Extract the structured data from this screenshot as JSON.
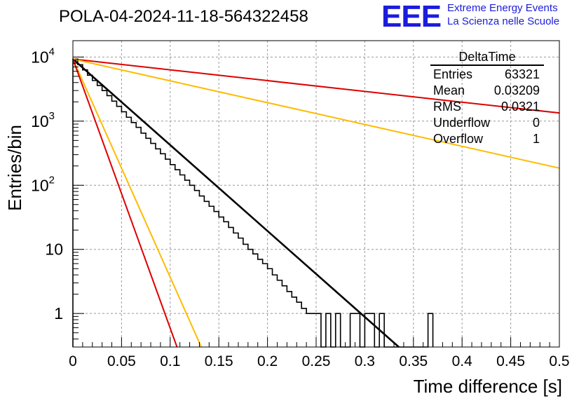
{
  "title": "POLA-04-2024-11-18-564322458",
  "logo": {
    "mark": "EEE",
    "line1": "Extreme Energy Events",
    "line2": "La Scienza nelle Scuole"
  },
  "stats": {
    "name": "DeltaTime",
    "rows": [
      {
        "label": "Entries",
        "value": "63321"
      },
      {
        "label": "Mean",
        "value": "0.03209"
      },
      {
        "label": "RMS",
        "value": "0.0321"
      },
      {
        "label": "Underflow",
        "value": "0"
      },
      {
        "label": "Overflow",
        "value": "1"
      }
    ]
  },
  "chart_data": {
    "type": "line",
    "title": "POLA-04-2024-11-18-564322458",
    "xlabel": "Time difference [s]",
    "ylabel": "Entries/bin",
    "xlim": [
      0,
      0.5
    ],
    "ylim": [
      0.3,
      18000
    ],
    "yscale": "log",
    "grid": true,
    "legend": "none",
    "x_ticks": [
      "0",
      "0.05",
      "0.1",
      "0.15",
      "0.2",
      "0.25",
      "0.3",
      "0.35",
      "0.4",
      "0.45",
      "0.5"
    ],
    "y_ticks": [
      {
        "value": 1,
        "base": "1",
        "exp": ""
      },
      {
        "value": 10,
        "base": "10",
        "exp": ""
      },
      {
        "value": 100,
        "base": "10",
        "exp": "2"
      },
      {
        "value": 1000,
        "base": "10",
        "exp": "3"
      },
      {
        "value": 10000,
        "base": "10",
        "exp": "4"
      }
    ],
    "histogram": {
      "bin_width": 0.005,
      "color": "#000000",
      "bins": [
        {
          "x": 0.0,
          "y": 9300
        },
        {
          "x": 0.005,
          "y": 7600
        },
        {
          "x": 0.01,
          "y": 6300
        },
        {
          "x": 0.015,
          "y": 5200
        },
        {
          "x": 0.02,
          "y": 4300
        },
        {
          "x": 0.025,
          "y": 3600
        },
        {
          "x": 0.03,
          "y": 3000
        },
        {
          "x": 0.035,
          "y": 2500
        },
        {
          "x": 0.04,
          "y": 2050
        },
        {
          "x": 0.045,
          "y": 1700
        },
        {
          "x": 0.05,
          "y": 1400
        },
        {
          "x": 0.055,
          "y": 1150
        },
        {
          "x": 0.06,
          "y": 950
        },
        {
          "x": 0.065,
          "y": 800
        },
        {
          "x": 0.07,
          "y": 650
        },
        {
          "x": 0.075,
          "y": 540
        },
        {
          "x": 0.08,
          "y": 450
        },
        {
          "x": 0.085,
          "y": 370
        },
        {
          "x": 0.09,
          "y": 310
        },
        {
          "x": 0.095,
          "y": 255
        },
        {
          "x": 0.1,
          "y": 210
        },
        {
          "x": 0.105,
          "y": 175
        },
        {
          "x": 0.11,
          "y": 145
        },
        {
          "x": 0.115,
          "y": 120
        },
        {
          "x": 0.12,
          "y": 100
        },
        {
          "x": 0.125,
          "y": 83
        },
        {
          "x": 0.13,
          "y": 68
        },
        {
          "x": 0.135,
          "y": 56
        },
        {
          "x": 0.14,
          "y": 47
        },
        {
          "x": 0.145,
          "y": 39
        },
        {
          "x": 0.15,
          "y": 32
        },
        {
          "x": 0.155,
          "y": 27
        },
        {
          "x": 0.16,
          "y": 22
        },
        {
          "x": 0.165,
          "y": 18
        },
        {
          "x": 0.17,
          "y": 15
        },
        {
          "x": 0.175,
          "y": 12
        },
        {
          "x": 0.18,
          "y": 10
        },
        {
          "x": 0.185,
          "y": 8.5
        },
        {
          "x": 0.19,
          "y": 7
        },
        {
          "x": 0.195,
          "y": 6
        },
        {
          "x": 0.2,
          "y": 5
        },
        {
          "x": 0.205,
          "y": 4
        },
        {
          "x": 0.21,
          "y": 3.3
        },
        {
          "x": 0.215,
          "y": 2.7
        },
        {
          "x": 0.22,
          "y": 2.2
        },
        {
          "x": 0.225,
          "y": 1.8
        },
        {
          "x": 0.23,
          "y": 1.5
        },
        {
          "x": 0.235,
          "y": 1.2
        },
        {
          "x": 0.24,
          "y": 1
        },
        {
          "x": 0.245,
          "y": 1
        },
        {
          "x": 0.25,
          "y": 1
        },
        {
          "x": 0.255,
          "y": 0
        },
        {
          "x": 0.26,
          "y": 1
        },
        {
          "x": 0.265,
          "y": 0
        },
        {
          "x": 0.27,
          "y": 1
        },
        {
          "x": 0.275,
          "y": 0
        },
        {
          "x": 0.28,
          "y": 0
        },
        {
          "x": 0.285,
          "y": 1
        },
        {
          "x": 0.29,
          "y": 1
        },
        {
          "x": 0.295,
          "y": 0
        },
        {
          "x": 0.3,
          "y": 1
        },
        {
          "x": 0.305,
          "y": 1
        },
        {
          "x": 0.31,
          "y": 0
        },
        {
          "x": 0.315,
          "y": 1
        },
        {
          "x": 0.32,
          "y": 0
        },
        {
          "x": 0.325,
          "y": 0
        },
        {
          "x": 0.33,
          "y": 0
        },
        {
          "x": 0.335,
          "y": 0
        },
        {
          "x": 0.34,
          "y": 0
        },
        {
          "x": 0.345,
          "y": 0
        },
        {
          "x": 0.35,
          "y": 0
        },
        {
          "x": 0.355,
          "y": 0
        },
        {
          "x": 0.36,
          "y": 0
        },
        {
          "x": 0.365,
          "y": 1
        }
      ]
    },
    "series": [
      {
        "color": "#000000",
        "x": [
          0,
          0.335
        ],
        "y": [
          9300,
          0.3
        ]
      },
      {
        "color": "#dd0000",
        "x": [
          0,
          0.5
        ],
        "y": [
          9300,
          1340
        ]
      },
      {
        "color": "#ffbb00",
        "x": [
          0,
          0.5
        ],
        "y": [
          9300,
          185
        ]
      },
      {
        "color": "#ffbb00",
        "x": [
          0,
          0.132
        ],
        "y": [
          9300,
          0.3
        ]
      },
      {
        "color": "#dd0000",
        "x": [
          0,
          0.107
        ],
        "y": [
          9300,
          0.3
        ]
      }
    ]
  }
}
